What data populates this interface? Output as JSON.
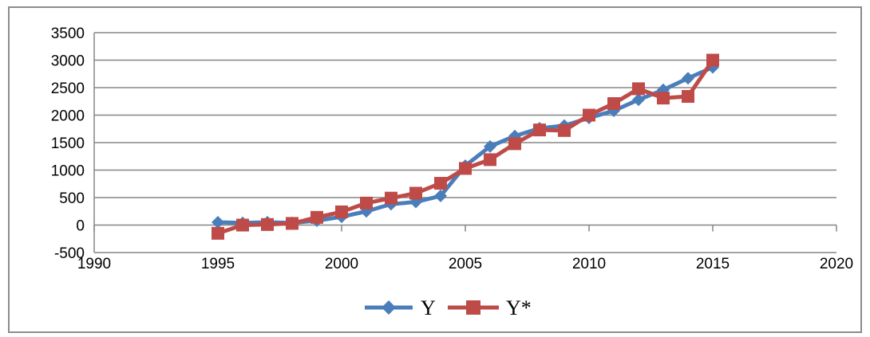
{
  "chart_data": {
    "type": "line",
    "title": "",
    "xlabel": "",
    "ylabel": "",
    "xlim": [
      1990,
      2020
    ],
    "ylim": [
      -500,
      3500
    ],
    "x_ticks": [
      1990,
      1995,
      2000,
      2005,
      2010,
      2015,
      2020
    ],
    "y_ticks": [
      -500,
      0,
      500,
      1000,
      1500,
      2000,
      2500,
      3000,
      3500
    ],
    "x_tick_labels": [
      "1990",
      "1995",
      "2000",
      "2005",
      "2010",
      "2015",
      "2020"
    ],
    "y_tick_labels": [
      "-500",
      "0",
      "500",
      "1000",
      "1500",
      "2000",
      "2500",
      "3000",
      "3500"
    ],
    "grid": "horizontal",
    "legend": "bottom",
    "x": [
      1995,
      1996,
      1997,
      1998,
      1999,
      2000,
      2001,
      2002,
      2003,
      2004,
      2005,
      2006,
      2007,
      2008,
      2009,
      2010,
      2011,
      2012,
      2013,
      2014,
      2015
    ],
    "series": [
      {
        "name": "Y",
        "color": "#4a7ebb",
        "marker": "diamond",
        "values": [
          50,
          40,
          50,
          40,
          80,
          150,
          250,
          380,
          420,
          530,
          1080,
          1430,
          1620,
          1760,
          1810,
          1950,
          2080,
          2280,
          2460,
          2670,
          2870
        ]
      },
      {
        "name": "Y*",
        "color": "#be4b48",
        "marker": "square",
        "values": [
          -150,
          0,
          10,
          30,
          140,
          240,
          400,
          490,
          580,
          760,
          1030,
          1190,
          1480,
          1730,
          1720,
          2000,
          2210,
          2480,
          2310,
          2340,
          3000
        ]
      }
    ]
  }
}
